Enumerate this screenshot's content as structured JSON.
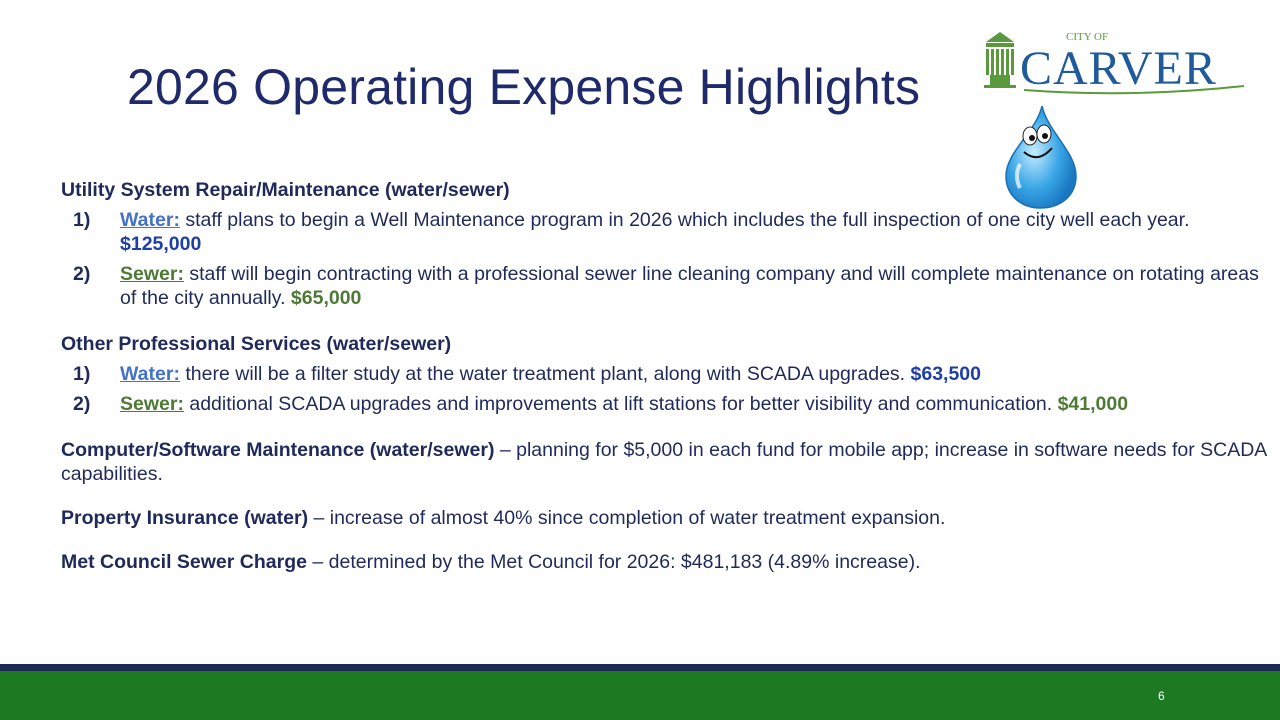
{
  "slide": {
    "title": "2026 Operating Expense Highlights",
    "page_number": "6"
  },
  "logo": {
    "small_text": "CITY OF",
    "name": "CARVER",
    "colors": {
      "green": "#5a9a3c",
      "blue": "#1f5a9a"
    }
  },
  "mascot": {
    "icon": "water-drop-face-icon",
    "color": "#3aa6e6"
  },
  "sections": [
    {
      "heading": "Utility System Repair/Maintenance (water/sewer)",
      "items": [
        {
          "number": "1)",
          "label": "Water:",
          "text": " staff plans to begin a Well Maintenance program in 2026 which includes the full inspection of one city well each year.  ",
          "amount": "$125,000"
        },
        {
          "number": "2)",
          "label": "Sewer:",
          "text": " staff will begin contracting with a professional sewer line cleaning company and will complete maintenance on rotating areas of the city annually. ",
          "amount": "$65,000"
        }
      ]
    },
    {
      "heading": "Other Professional Services (water/sewer)",
      "items": [
        {
          "number": "1)",
          "label": "Water:",
          "text": " there will be a filter study at the water treatment plant, along with SCADA upgrades. ",
          "amount": "$63,500"
        },
        {
          "number": "2)",
          "label": "Sewer:",
          "text": " additional SCADA upgrades and improvements at lift stations for better visibility and communication. ",
          "amount": "$41,000"
        }
      ]
    }
  ],
  "paragraphs": [
    {
      "heading": "Computer/Software Maintenance (water/sewer)",
      "text": " – planning for $5,000 in each fund for mobile app; increase in software needs for SCADA capabilities."
    },
    {
      "heading": "Property Insurance (water)",
      "text": " – increase of almost 40% since completion of water treatment expansion."
    },
    {
      "heading": "Met Council Sewer Charge",
      "text": " – determined by the Met Council for 2026: $481,183 (4.89% increase)."
    }
  ],
  "colors": {
    "title": "#1f2a6b",
    "water_label": "#4472c4",
    "sewer_label": "#4e7a36",
    "footer_navy": "#1c2a55",
    "footer_green": "#1d7a22"
  }
}
